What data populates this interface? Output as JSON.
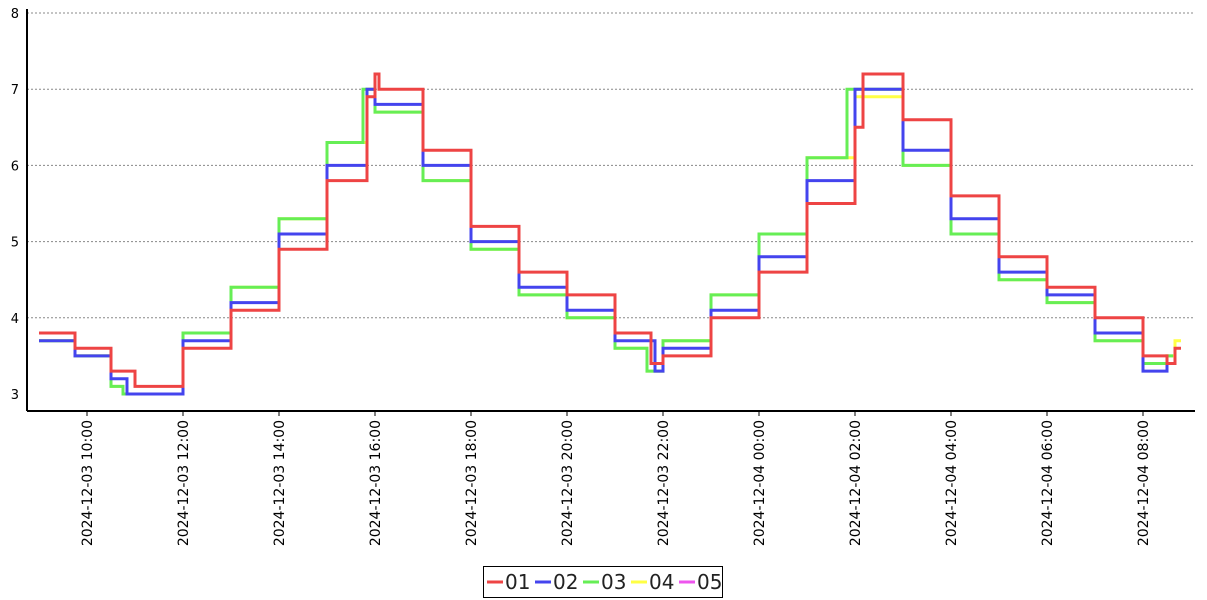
{
  "chart_data": {
    "type": "line",
    "step": true,
    "title": "",
    "xlabel": "",
    "ylabel": "",
    "ylim": [
      3,
      8
    ],
    "yticks": [
      3,
      4,
      5,
      6,
      7,
      8
    ],
    "grid": "horizontal dotted",
    "legend_position": "bottom-center",
    "xlim": [
      "2024-12-03 08:45",
      "2024-12-04 09:05"
    ],
    "x_ticks": [
      "2024-12-03 10:00",
      "2024-12-03 12:00",
      "2024-12-03 14:00",
      "2024-12-03 16:00",
      "2024-12-03 18:00",
      "2024-12-03 20:00",
      "2024-12-03 22:00",
      "2024-12-04 00:00",
      "2024-12-04 02:00",
      "2024-12-04 04:00",
      "2024-12-04 06:00",
      "2024-12-04 08:00"
    ],
    "series": [
      {
        "name": "01",
        "color": "#ee4444",
        "x": [
          "2024-12-03 09:00",
          "2024-12-03 09:45",
          "2024-12-03 10:30",
          "2024-12-03 11:00",
          "2024-12-03 12:00",
          "2024-12-03 13:00",
          "2024-12-03 14:00",
          "2024-12-03 15:00",
          "2024-12-03 15:50",
          "2024-12-03 16:00",
          "2024-12-03 16:05",
          "2024-12-03 17:00",
          "2024-12-03 18:00",
          "2024-12-03 19:00",
          "2024-12-03 20:00",
          "2024-12-03 21:00",
          "2024-12-03 21:45",
          "2024-12-03 22:00",
          "2024-12-03 23:00",
          "2024-12-04 00:00",
          "2024-12-04 01:00",
          "2024-12-04 02:00",
          "2024-12-04 02:10",
          "2024-12-04 03:00",
          "2024-12-04 04:00",
          "2024-12-04 05:00",
          "2024-12-04 06:00",
          "2024-12-04 07:00",
          "2024-12-04 08:00",
          "2024-12-04 08:30",
          "2024-12-04 08:40"
        ],
        "y": [
          3.8,
          3.6,
          3.3,
          3.1,
          3.6,
          4.1,
          4.9,
          5.8,
          6.9,
          7.2,
          7.0,
          6.2,
          5.2,
          4.6,
          4.3,
          3.8,
          3.4,
          3.5,
          4.0,
          4.6,
          5.5,
          6.5,
          7.2,
          6.6,
          5.6,
          4.8,
          4.4,
          4.0,
          3.5,
          3.4,
          3.6
        ]
      },
      {
        "name": "02",
        "color": "#4444ee",
        "x": [
          "2024-12-03 09:00",
          "2024-12-03 09:45",
          "2024-12-03 10:30",
          "2024-12-03 10:50",
          "2024-12-03 12:00",
          "2024-12-03 13:00",
          "2024-12-03 14:00",
          "2024-12-03 15:00",
          "2024-12-03 15:50",
          "2024-12-03 16:00",
          "2024-12-03 17:00",
          "2024-12-03 18:00",
          "2024-12-03 19:00",
          "2024-12-03 20:00",
          "2024-12-03 21:00",
          "2024-12-03 21:50",
          "2024-12-03 22:00",
          "2024-12-03 23:00",
          "2024-12-04 00:00",
          "2024-12-04 01:00",
          "2024-12-04 02:00",
          "2024-12-04 03:00",
          "2024-12-04 04:00",
          "2024-12-04 05:00",
          "2024-12-04 06:00",
          "2024-12-04 07:00",
          "2024-12-04 08:00",
          "2024-12-04 08:30"
        ],
        "y": [
          3.7,
          3.5,
          3.2,
          3.0,
          3.7,
          4.2,
          5.1,
          6.0,
          7.0,
          6.8,
          6.0,
          5.0,
          4.4,
          4.1,
          3.7,
          3.3,
          3.6,
          4.1,
          4.8,
          5.8,
          7.0,
          6.2,
          5.3,
          4.6,
          4.3,
          3.8,
          3.3,
          3.4
        ]
      },
      {
        "name": "03",
        "color": "#66ee55",
        "x": [
          "2024-12-03 09:00",
          "2024-12-03 09:45",
          "2024-12-03 10:30",
          "2024-12-03 10:45",
          "2024-12-03 12:00",
          "2024-12-03 13:00",
          "2024-12-03 14:00",
          "2024-12-03 15:00",
          "2024-12-03 15:45",
          "2024-12-03 16:00",
          "2024-12-03 17:00",
          "2024-12-03 18:00",
          "2024-12-03 19:00",
          "2024-12-03 20:00",
          "2024-12-03 21:00",
          "2024-12-03 21:40",
          "2024-12-03 22:00",
          "2024-12-03 23:00",
          "2024-12-04 00:00",
          "2024-12-04 01:00",
          "2024-12-04 01:50",
          "2024-12-04 03:00",
          "2024-12-04 04:00",
          "2024-12-04 05:00",
          "2024-12-04 06:00",
          "2024-12-04 07:00",
          "2024-12-04 08:00",
          "2024-12-04 08:30"
        ],
        "y": [
          3.7,
          3.5,
          3.1,
          3.0,
          3.8,
          4.4,
          5.3,
          6.3,
          7.0,
          6.7,
          5.8,
          4.9,
          4.3,
          4.0,
          3.6,
          3.3,
          3.7,
          4.3,
          5.1,
          6.1,
          7.0,
          6.0,
          5.1,
          4.5,
          4.2,
          3.7,
          3.4,
          3.5
        ]
      },
      {
        "name": "04",
        "color": "#ffff44",
        "x": [
          "2024-12-03 09:00",
          "2024-12-03 09:45",
          "2024-12-03 10:30",
          "2024-12-03 10:45",
          "2024-12-03 12:00",
          "2024-12-03 13:00",
          "2024-12-03 14:00",
          "2024-12-03 15:00",
          "2024-12-03 15:50",
          "2024-12-03 16:00",
          "2024-12-03 17:00",
          "2024-12-03 18:00",
          "2024-12-03 19:00",
          "2024-12-03 20:00",
          "2024-12-03 21:00",
          "2024-12-03 21:40",
          "2024-12-03 22:00",
          "2024-12-03 23:00",
          "2024-12-04 00:00",
          "2024-12-04 01:00",
          "2024-12-04 02:00",
          "2024-12-04 03:00",
          "2024-12-04 04:00",
          "2024-12-04 05:00",
          "2024-12-04 06:00",
          "2024-12-04 07:00",
          "2024-12-04 08:00",
          "2024-12-04 08:30",
          "2024-12-04 08:40"
        ],
        "y": [
          3.7,
          3.5,
          3.1,
          3.0,
          3.8,
          4.4,
          5.3,
          6.3,
          7.0,
          6.7,
          5.8,
          4.9,
          4.3,
          4.0,
          3.6,
          3.3,
          3.7,
          4.3,
          5.1,
          6.1,
          6.9,
          6.0,
          5.1,
          4.5,
          4.2,
          3.7,
          3.4,
          3.5,
          3.7
        ]
      },
      {
        "name": "05",
        "color": "#ee55ee",
        "x": [],
        "y": []
      }
    ]
  }
}
